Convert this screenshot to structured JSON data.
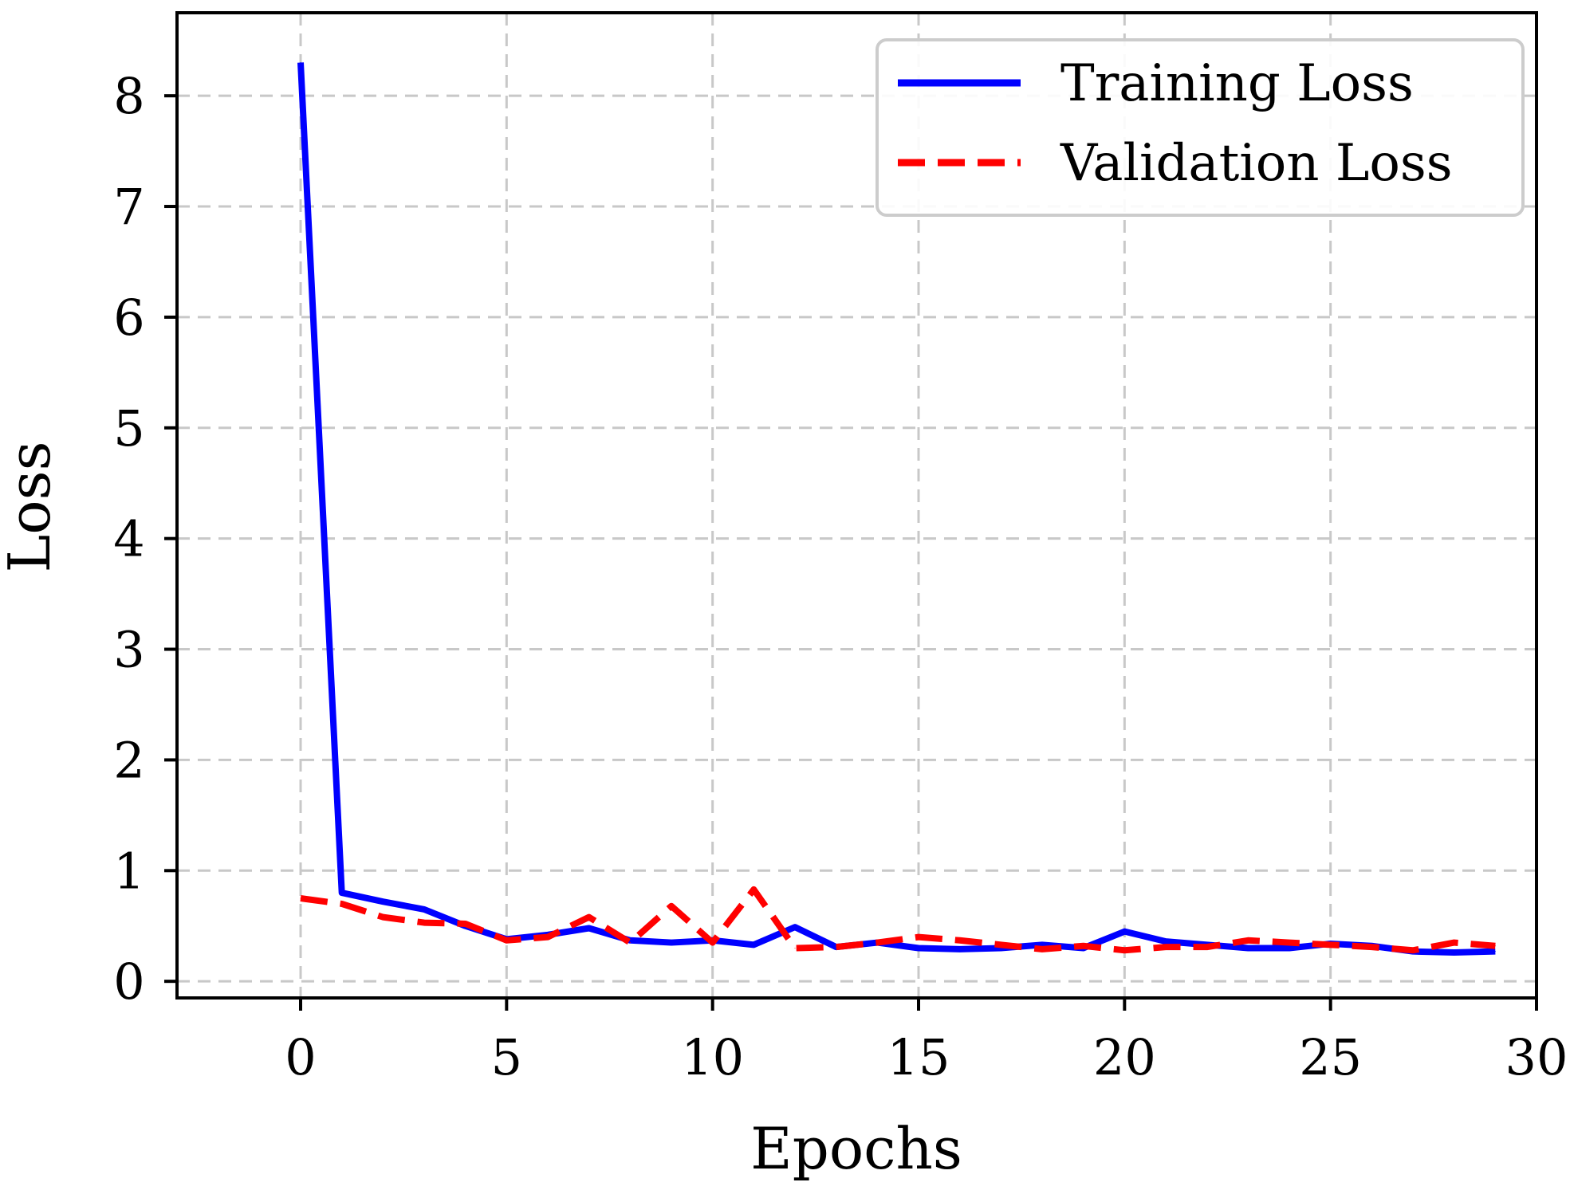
{
  "chart_data": {
    "type": "line",
    "title": "",
    "xlabel": "Epochs",
    "ylabel": "Loss",
    "xlim": [
      -3,
      30
    ],
    "ylim": [
      -0.15,
      8.75
    ],
    "xticks": [
      0,
      5,
      10,
      15,
      20,
      25,
      30
    ],
    "xtick_labels": [
      "0",
      "5",
      "10",
      "15",
      "20",
      "25",
      "30"
    ],
    "yticks": [
      0,
      1,
      2,
      3,
      4,
      5,
      6,
      7,
      8
    ],
    "ytick_labels": [
      "0",
      "1",
      "2",
      "3",
      "4",
      "5",
      "6",
      "7",
      "8"
    ],
    "grid": true,
    "legend_position": "top-right",
    "x": [
      0,
      1,
      2,
      3,
      4,
      5,
      6,
      7,
      8,
      9,
      10,
      11,
      12,
      13,
      14,
      15,
      16,
      17,
      18,
      19,
      20,
      21,
      22,
      23,
      24,
      25,
      26,
      27,
      28,
      29
    ],
    "series": [
      {
        "name": "Training Loss",
        "color": "#0000ff",
        "style": "solid",
        "values": [
          8.3,
          0.8,
          0.72,
          0.65,
          0.5,
          0.38,
          0.42,
          0.48,
          0.37,
          0.35,
          0.37,
          0.33,
          0.49,
          0.31,
          0.35,
          0.3,
          0.29,
          0.3,
          0.33,
          0.3,
          0.45,
          0.36,
          0.33,
          0.3,
          0.3,
          0.34,
          0.32,
          0.27,
          0.26,
          0.27
        ]
      },
      {
        "name": "Validation Loss",
        "color": "#ff0000",
        "style": "dashed",
        "values": [
          0.75,
          0.7,
          0.58,
          0.53,
          0.52,
          0.37,
          0.4,
          0.58,
          0.35,
          0.68,
          0.35,
          0.83,
          0.3,
          0.31,
          0.35,
          0.4,
          0.37,
          0.33,
          0.29,
          0.32,
          0.28,
          0.31,
          0.31,
          0.37,
          0.35,
          0.33,
          0.31,
          0.28,
          0.35,
          0.32
        ]
      }
    ]
  }
}
